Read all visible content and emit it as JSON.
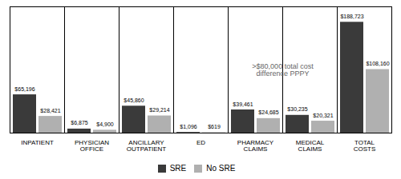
{
  "chart_data": {
    "type": "bar",
    "categories": [
      "INPATIENT",
      "PHYSICIAN\nOFFICE",
      "ANCILLARY\nOUTPATIENT",
      "ED",
      "PHARMACY\nCLAIMS",
      "MEDICAL\nCLAIMS",
      "TOTAL\nCOSTS"
    ],
    "series": [
      {
        "name": "SRE",
        "color": "#3a3a3a",
        "values": [
          65196,
          6875,
          45860,
          1096,
          39461,
          30235,
          188723
        ],
        "value_labels": [
          "$65,196",
          "$6,875",
          "$45,860",
          "$1,096",
          "$39,461",
          "$30,235",
          "$188,723"
        ]
      },
      {
        "name": "No SRE",
        "color": "#b0b0b0",
        "values": [
          28421,
          4900,
          29214,
          619,
          24685,
          20321,
          108160
        ],
        "value_labels": [
          "$28,421",
          "$4,900",
          "$29,214",
          "$619",
          "$24,685",
          "$20,321",
          "$108,160"
        ]
      }
    ],
    "annotations": [
      {
        "text": ">$80,000 total cost\ndifference PPPY"
      }
    ],
    "ylim": [
      0,
      215000
    ],
    "yticks": [],
    "tick_labels": "x",
    "data_labels": true,
    "grid": false,
    "legend": "bottom"
  }
}
